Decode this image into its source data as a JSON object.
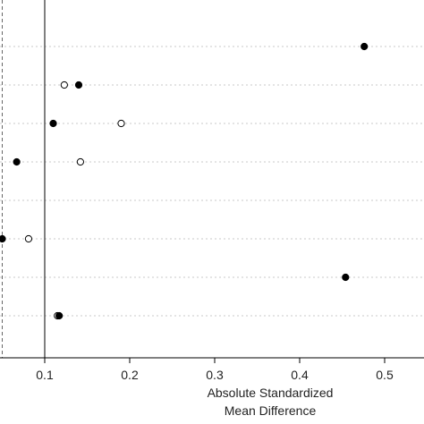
{
  "chart_data": {
    "type": "scatter",
    "title": "",
    "xlabel": [
      "Absolute Standardized",
      "Mean Difference"
    ],
    "ylabel": "",
    "xlim": [
      0.05,
      0.5
    ],
    "x_ticks": [
      "0.1",
      "0.2",
      "0.3",
      "0.4",
      "0.5"
    ],
    "x_tick_values": [
      0.1,
      0.2,
      0.3,
      0.4,
      0.5
    ],
    "grid": "horizontal dotted",
    "reference_lines": [
      {
        "x": 0.05,
        "style": "dashed"
      },
      {
        "x": 0.1,
        "style": "solid"
      }
    ],
    "rows": 8,
    "series": [
      {
        "marker": "filled",
        "points": [
          {
            "row": 1,
            "x": 0.476
          },
          {
            "row": 2,
            "x": 0.14
          },
          {
            "row": 3,
            "x": 0.11
          },
          {
            "row": 4,
            "x": 0.067
          },
          {
            "row": 6,
            "x": 0.05
          },
          {
            "row": 7,
            "x": 0.454
          },
          {
            "row": 8,
            "x": 0.117
          }
        ]
      },
      {
        "marker": "open",
        "points": [
          {
            "row": 2,
            "x": 0.123
          },
          {
            "row": 3,
            "x": 0.19
          },
          {
            "row": 4,
            "x": 0.142
          },
          {
            "row": 6,
            "x": 0.081
          },
          {
            "row": 8,
            "x": 0.115
          }
        ]
      }
    ]
  }
}
